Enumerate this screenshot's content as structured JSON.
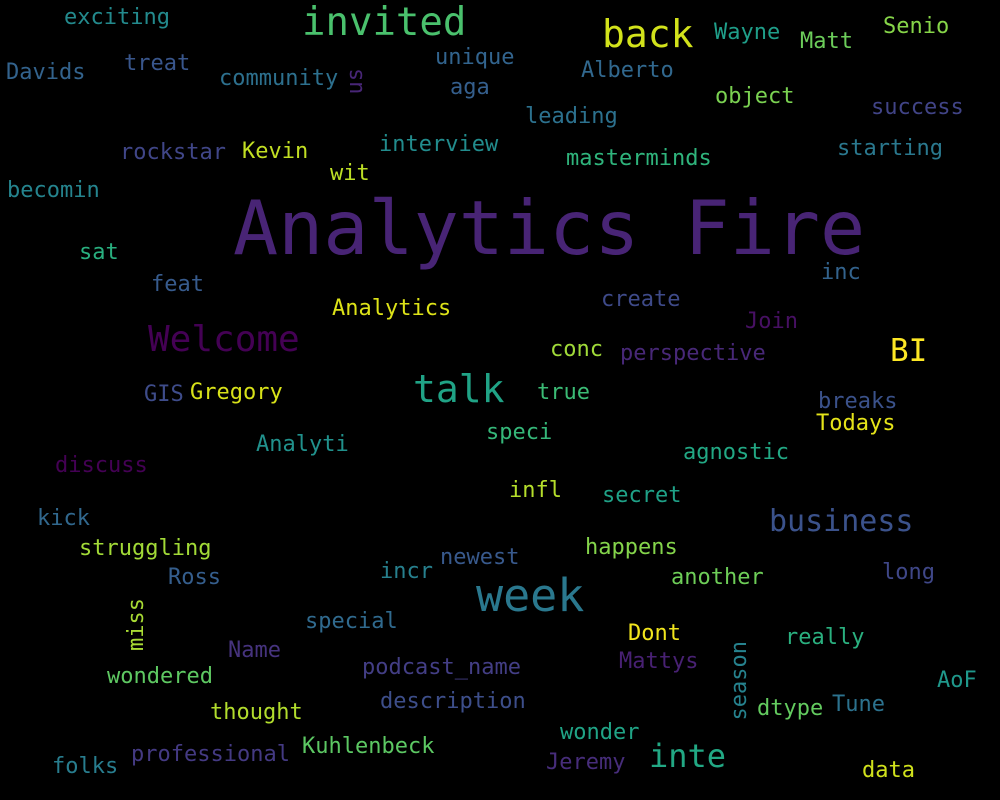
{
  "word_cloud": {
    "background": "#000000",
    "words": [
      {
        "text": "Analytics Fire",
        "color": "#482475"
      },
      {
        "text": "invited",
        "color": "#4ac16d"
      },
      {
        "text": "back",
        "color": "#d2e21b"
      },
      {
        "text": "week",
        "color": "#2a788e"
      },
      {
        "text": "Welcome",
        "color": "#440154"
      },
      {
        "text": "talk",
        "color": "#20a386"
      },
      {
        "text": "business",
        "color": "#3b528b"
      },
      {
        "text": "BI",
        "color": "#fde725"
      },
      {
        "text": "inte",
        "color": "#22a884"
      },
      {
        "text": "exciting",
        "color": "#238a8d"
      },
      {
        "text": "Wayne",
        "color": "#1f9e89"
      },
      {
        "text": "Matt",
        "color": "#6ccd5a"
      },
      {
        "text": "Senio",
        "color": "#86d549"
      },
      {
        "text": "Davids",
        "color": "#33638d"
      },
      {
        "text": "treat",
        "color": "#39568c"
      },
      {
        "text": "community",
        "color": "#2d708e"
      },
      {
        "text": "us",
        "color": "#482677"
      },
      {
        "text": "unique",
        "color": "#32648e"
      },
      {
        "text": "aga",
        "color": "#355f8d"
      },
      {
        "text": "Alberto",
        "color": "#31688e"
      },
      {
        "text": "object",
        "color": "#7ad151"
      },
      {
        "text": "leading",
        "color": "#2c718e"
      },
      {
        "text": "success",
        "color": "#414487"
      },
      {
        "text": "rockstar",
        "color": "#404688"
      },
      {
        "text": "Kevin",
        "color": "#c2df23"
      },
      {
        "text": "interview",
        "color": "#228c8d"
      },
      {
        "text": "masterminds",
        "color": "#2fb47c"
      },
      {
        "text": "starting",
        "color": "#2a788e"
      },
      {
        "text": "wit",
        "color": "#bddf26"
      },
      {
        "text": "becomin",
        "color": "#25848e"
      },
      {
        "text": "sat",
        "color": "#29af7f"
      },
      {
        "text": "feat",
        "color": "#375b8d"
      },
      {
        "text": "inc",
        "color": "#33638d"
      },
      {
        "text": "create",
        "color": "#3e4a89"
      },
      {
        "text": "Analytics",
        "color": "#dde318"
      },
      {
        "text": "Join",
        "color": "#471063"
      },
      {
        "text": "conc",
        "color": "#a0da39"
      },
      {
        "text": "perspective",
        "color": "#482878"
      },
      {
        "text": "GIS",
        "color": "#3e4c8a"
      },
      {
        "text": "Gregory",
        "color": "#d8e219"
      },
      {
        "text": "true",
        "color": "#3bbb75"
      },
      {
        "text": "breaks",
        "color": "#3b528b"
      },
      {
        "text": "Todays",
        "color": "#e5e419"
      },
      {
        "text": "speci",
        "color": "#35b779"
      },
      {
        "text": "Analyti",
        "color": "#21918c"
      },
      {
        "text": "agnostic",
        "color": "#22a884"
      },
      {
        "text": "discuss",
        "color": "#440154"
      },
      {
        "text": "infl",
        "color": "#b5de2b"
      },
      {
        "text": "secret",
        "color": "#1fa187"
      },
      {
        "text": "kick",
        "color": "#31688e"
      },
      {
        "text": "struggling",
        "color": "#a2da37"
      },
      {
        "text": "newest",
        "color": "#38598c"
      },
      {
        "text": "happens",
        "color": "#84d44b"
      },
      {
        "text": "Ross",
        "color": "#355e8d"
      },
      {
        "text": "incr",
        "color": "#27808e"
      },
      {
        "text": "another",
        "color": "#6ece58"
      },
      {
        "text": "long",
        "color": "#3f4788"
      },
      {
        "text": "miss",
        "color": "#a8db34"
      },
      {
        "text": "special",
        "color": "#306a8e"
      },
      {
        "text": "Dont",
        "color": "#f1e51d"
      },
      {
        "text": "really",
        "color": "#2ab07f"
      },
      {
        "text": "Name",
        "color": "#46337e"
      },
      {
        "text": "season",
        "color": "#26828e"
      },
      {
        "text": "podcast_name",
        "color": "#433e85"
      },
      {
        "text": "Mattys",
        "color": "#482173"
      },
      {
        "text": "AoF",
        "color": "#1f988b"
      },
      {
        "text": "wondered",
        "color": "#5ec962"
      },
      {
        "text": "description",
        "color": "#3d4e8a"
      },
      {
        "text": "thought",
        "color": "#b2dd2d"
      },
      {
        "text": "dtype",
        "color": "#63cb5f"
      },
      {
        "text": "Tune",
        "color": "#2c728e"
      },
      {
        "text": "wonder",
        "color": "#20a486"
      },
      {
        "text": "professional",
        "color": "#443a83"
      },
      {
        "text": "Kuhlenbeck",
        "color": "#5cc863"
      },
      {
        "text": "folks",
        "color": "#287d8e"
      },
      {
        "text": "Jeremy",
        "color": "#472d7b"
      },
      {
        "text": "data",
        "color": "#d0e11c"
      }
    ]
  }
}
